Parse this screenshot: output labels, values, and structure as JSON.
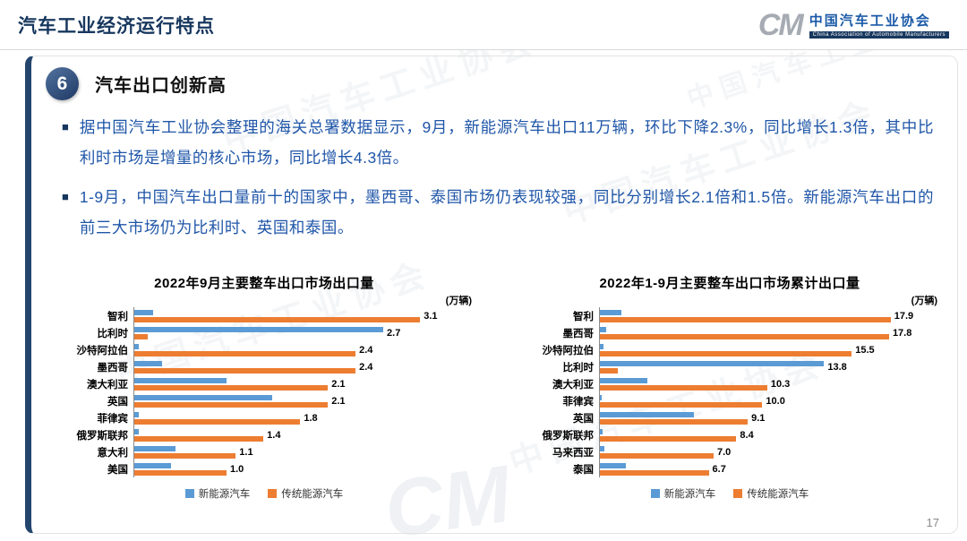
{
  "header": {
    "title": "汽车工业经济运行特点",
    "logo": {
      "mark": "CM",
      "org_cn": "中国汽车工业协会",
      "org_en": "China Association of Automobile Manufacturers"
    }
  },
  "section": {
    "number": "6",
    "title": "汽车出口创新高"
  },
  "bullet_marker": "■",
  "bullets": [
    "据中国汽车工业协会整理的海关总署数据显示，9月，新能源汽车出口11万辆，环比下降2.3%，同比增长1.3倍，其中比利时市场是增量的核心市场，同比增长4.3倍。",
    "1-9月，中国汽车出口量前十的国家中，墨西哥、泰国市场仍表现较强，同比分别增长2.1倍和1.5倍。新能源汽车出口的前三大市场仍为比利时、英国和泰国。"
  ],
  "watermark": "中国汽车工业协会",
  "watermark_mark": "CM",
  "page_number": "17",
  "colors": {
    "nev_blue": "#5B9BD5",
    "ice_orange": "#ED7D31",
    "navy": "#1F3864",
    "bullet_blue": "#1F56A8"
  },
  "chart_data": [
    {
      "type": "bar",
      "orientation": "horizontal",
      "title": "2022年9月主要整车出口市场出口量",
      "unit_label": "(万辆)",
      "categories": [
        "智利",
        "比利时",
        "沙特阿拉伯",
        "墨西哥",
        "澳大利亚",
        "英国",
        "菲律宾",
        "俄罗斯联邦",
        "意大利",
        "美国"
      ],
      "series": [
        {
          "name": "新能源汽车",
          "color": "#5B9BD5",
          "values": [
            0.2,
            2.7,
            0.05,
            0.3,
            1.0,
            1.5,
            0.05,
            0.05,
            0.45,
            0.4
          ]
        },
        {
          "name": "传统能源汽车",
          "color": "#ED7D31",
          "values": [
            3.1,
            0.15,
            2.4,
            2.4,
            2.1,
            2.1,
            1.8,
            1.4,
            1.1,
            1.0
          ]
        }
      ],
      "value_labels": [
        3.1,
        2.7,
        2.4,
        2.4,
        2.1,
        2.1,
        1.8,
        1.4,
        1.1,
        1.0
      ],
      "xlim": [
        0,
        3.7
      ],
      "legend_position": "bottom",
      "grid": false
    },
    {
      "type": "bar",
      "orientation": "horizontal",
      "title": "2022年1-9月主要整车出口市场累计出口量",
      "unit_label": "(万辆)",
      "categories": [
        "智利",
        "墨西哥",
        "沙特阿拉伯",
        "比利时",
        "澳大利亚",
        "菲律宾",
        "英国",
        "俄罗斯联邦",
        "马来西亚",
        "泰国"
      ],
      "series": [
        {
          "name": "新能源汽车",
          "color": "#5B9BD5",
          "values": [
            1.3,
            0.4,
            0.2,
            13.8,
            2.9,
            0.1,
            5.8,
            0.15,
            0.3,
            1.6
          ]
        },
        {
          "name": "传统能源汽车",
          "color": "#ED7D31",
          "values": [
            17.9,
            17.8,
            15.5,
            1.1,
            10.3,
            10.0,
            9.1,
            8.4,
            7.0,
            6.7
          ]
        }
      ],
      "value_labels": [
        17.9,
        17.8,
        15.5,
        13.8,
        10.3,
        10.0,
        9.1,
        8.4,
        7.0,
        6.7
      ],
      "xlim": [
        0,
        21
      ],
      "legend_position": "bottom",
      "grid": false
    }
  ]
}
